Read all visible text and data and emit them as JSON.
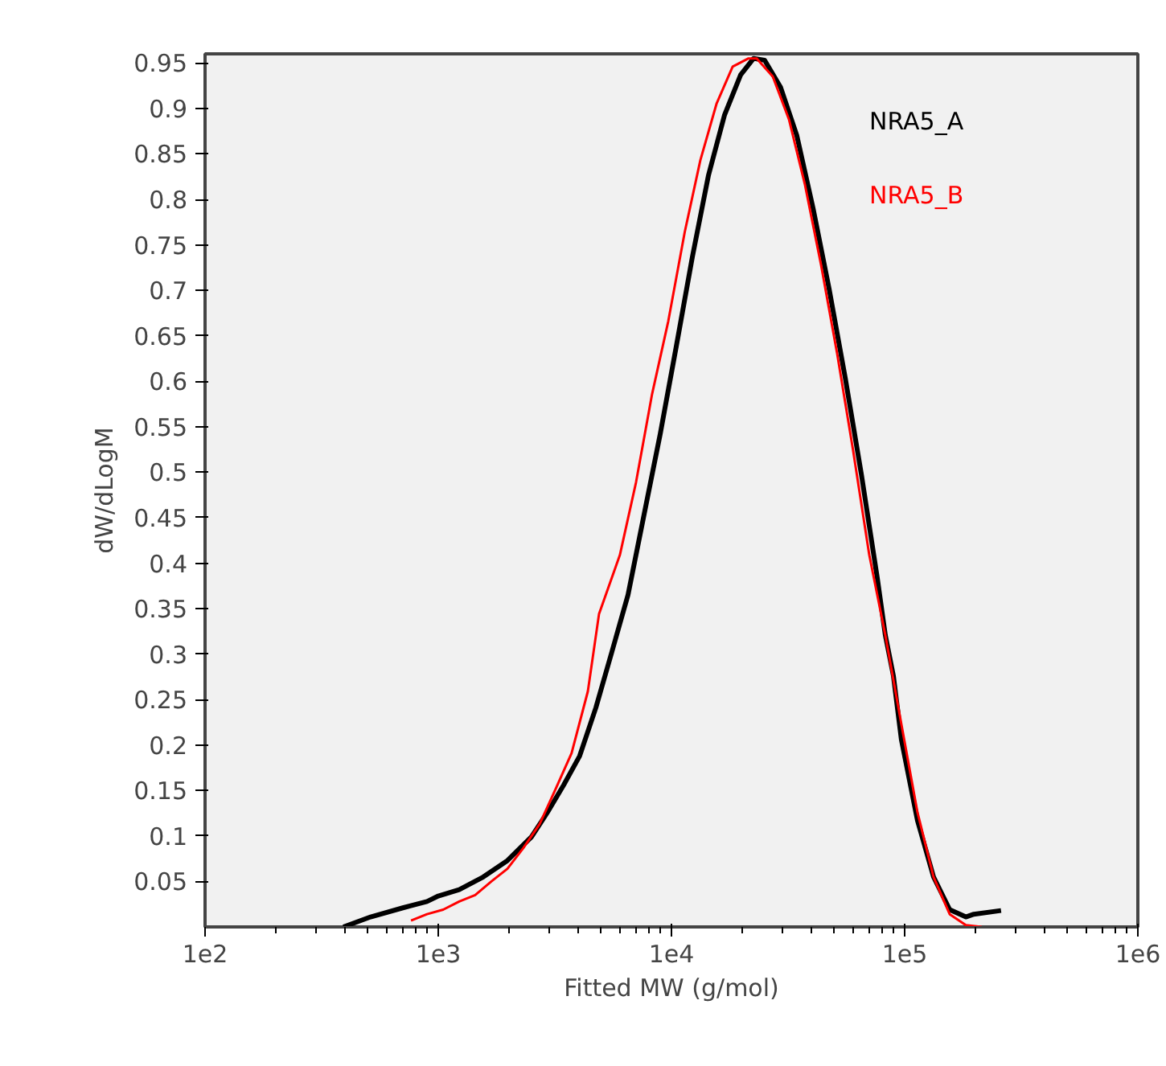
{
  "chart_data": {
    "type": "line",
    "xlabel": "Fitted MW (g/mol)",
    "ylabel": "dW/dLogM",
    "log": "x",
    "grid": false,
    "legend": "top right",
    "marker": "none",
    "line_style": "solid",
    "xlim": [
      100,
      1000000
    ],
    "xticks": [
      {
        "value": 100,
        "label": "1e2"
      },
      {
        "value": 1000,
        "label": "1e3"
      },
      {
        "value": 10000,
        "label": "1e4"
      },
      {
        "value": 100000,
        "label": "1e5"
      },
      {
        "value": 1000000,
        "label": "1e6"
      }
    ],
    "ylim": [
      0,
      0.96
    ],
    "yticks": [
      0.05,
      0.1,
      0.15,
      0.2,
      0.25,
      0.3,
      0.35,
      0.4,
      0.45,
      0.5,
      0.55,
      0.6,
      0.65,
      0.7,
      0.75,
      0.8,
      0.85,
      0.9,
      0.95
    ],
    "series": [
      {
        "name": "NRA5_A",
        "color": "#000000",
        "x": [
          392,
          513,
          705,
          895,
          1000,
          1230,
          1560,
          1980,
          2510,
          2940,
          3450,
          4040,
          4740,
          5560,
          6510,
          7640,
          8950,
          10500,
          12300,
          14400,
          16900,
          19800,
          22500,
          25100,
          29400,
          34500,
          40500,
          47400,
          55600,
          65200,
          76400,
          82600,
          89500,
          96800,
          113500,
          133000,
          156000,
          183000,
          198000,
          259000
        ],
        "values": [
          0,
          0.011,
          0.021,
          0.028,
          0.034,
          0.041,
          0.055,
          0.073,
          0.099,
          0.126,
          0.156,
          0.188,
          0.241,
          0.303,
          0.365,
          0.454,
          0.542,
          0.639,
          0.737,
          0.826,
          0.893,
          0.937,
          0.955,
          0.953,
          0.923,
          0.87,
          0.79,
          0.702,
          0.604,
          0.498,
          0.383,
          0.321,
          0.276,
          0.206,
          0.117,
          0.055,
          0.019,
          0.011,
          0.014,
          0.018
        ]
      },
      {
        "name": "NRA5_B",
        "color": "#ff0000",
        "x": [
          764,
          895,
          1050,
          1230,
          1440,
          1690,
          1980,
          2320,
          2720,
          3190,
          3730,
          4380,
          4890,
          6010,
          7050,
          8260,
          9690,
          11400,
          13300,
          15600,
          18300,
          21400,
          23200,
          27200,
          31900,
          37300,
          43800,
          51300,
          60100,
          70500,
          82600,
          96800,
          113500,
          133000,
          156000,
          183000,
          214000
        ],
        "values": [
          0.007,
          0.014,
          0.019,
          0.028,
          0.035,
          0.05,
          0.064,
          0.087,
          0.113,
          0.152,
          0.191,
          0.259,
          0.344,
          0.409,
          0.489,
          0.586,
          0.666,
          0.764,
          0.843,
          0.905,
          0.946,
          0.955,
          0.955,
          0.935,
          0.888,
          0.817,
          0.728,
          0.631,
          0.524,
          0.409,
          0.321,
          0.223,
          0.126,
          0.055,
          0.014,
          0.002,
          0
        ]
      }
    ]
  }
}
